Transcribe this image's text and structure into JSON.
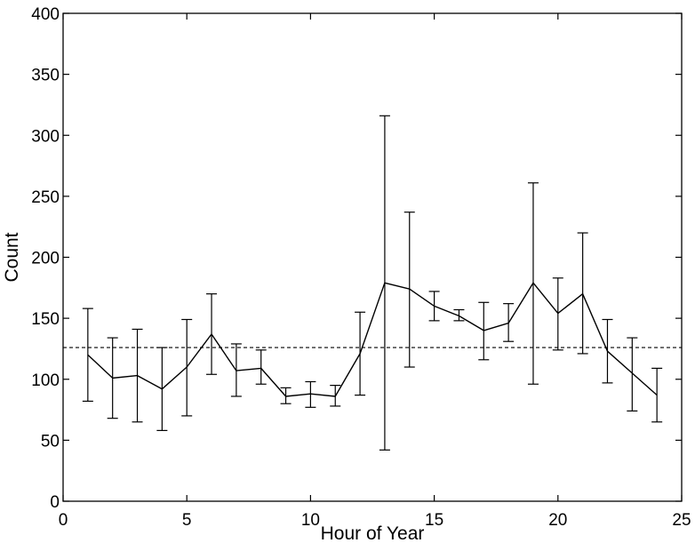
{
  "chart_data": {
    "type": "line",
    "title": "",
    "xlabel": "Hour of Year",
    "ylabel": "Count",
    "xlim": [
      0,
      25
    ],
    "ylim": [
      0,
      400
    ],
    "xticks": [
      0,
      5,
      10,
      15,
      20,
      25
    ],
    "yticks": [
      0,
      50,
      100,
      150,
      200,
      250,
      300,
      350,
      400
    ],
    "xtick_labels": [
      "0",
      "5",
      "10",
      "15",
      "20",
      "25"
    ],
    "ytick_labels": [
      "0",
      "50",
      "100",
      "150",
      "200",
      "250",
      "300",
      "350",
      "400"
    ],
    "grid": false,
    "legend": "none",
    "reference_line": {
      "y": 126,
      "style": "dashed"
    },
    "series": [
      {
        "x": [
          1,
          2,
          3,
          4,
          5,
          6,
          7,
          8,
          9,
          10,
          11,
          12,
          13,
          14,
          15,
          16,
          17,
          18,
          19,
          20,
          21,
          22,
          23,
          24
        ],
        "y": [
          120,
          101,
          103,
          92,
          110,
          137,
          107,
          109,
          86,
          88,
          86,
          121,
          179,
          174,
          160,
          152,
          140,
          146,
          179,
          154,
          170,
          123,
          105,
          87
        ],
        "err_low": [
          82,
          68,
          65,
          58,
          70,
          104,
          86,
          96,
          80,
          77,
          78,
          87,
          42,
          110,
          148,
          148,
          116,
          131,
          96,
          124,
          121,
          97,
          74,
          65
        ],
        "err_high": [
          158,
          134,
          141,
          126,
          149,
          170,
          129,
          124,
          93,
          98,
          95,
          155,
          316,
          237,
          172,
          157,
          163,
          162,
          261,
          183,
          220,
          149,
          134,
          109
        ]
      }
    ],
    "colors": {
      "line": "#000000",
      "axes": "#000000",
      "background": "#ffffff"
    }
  }
}
